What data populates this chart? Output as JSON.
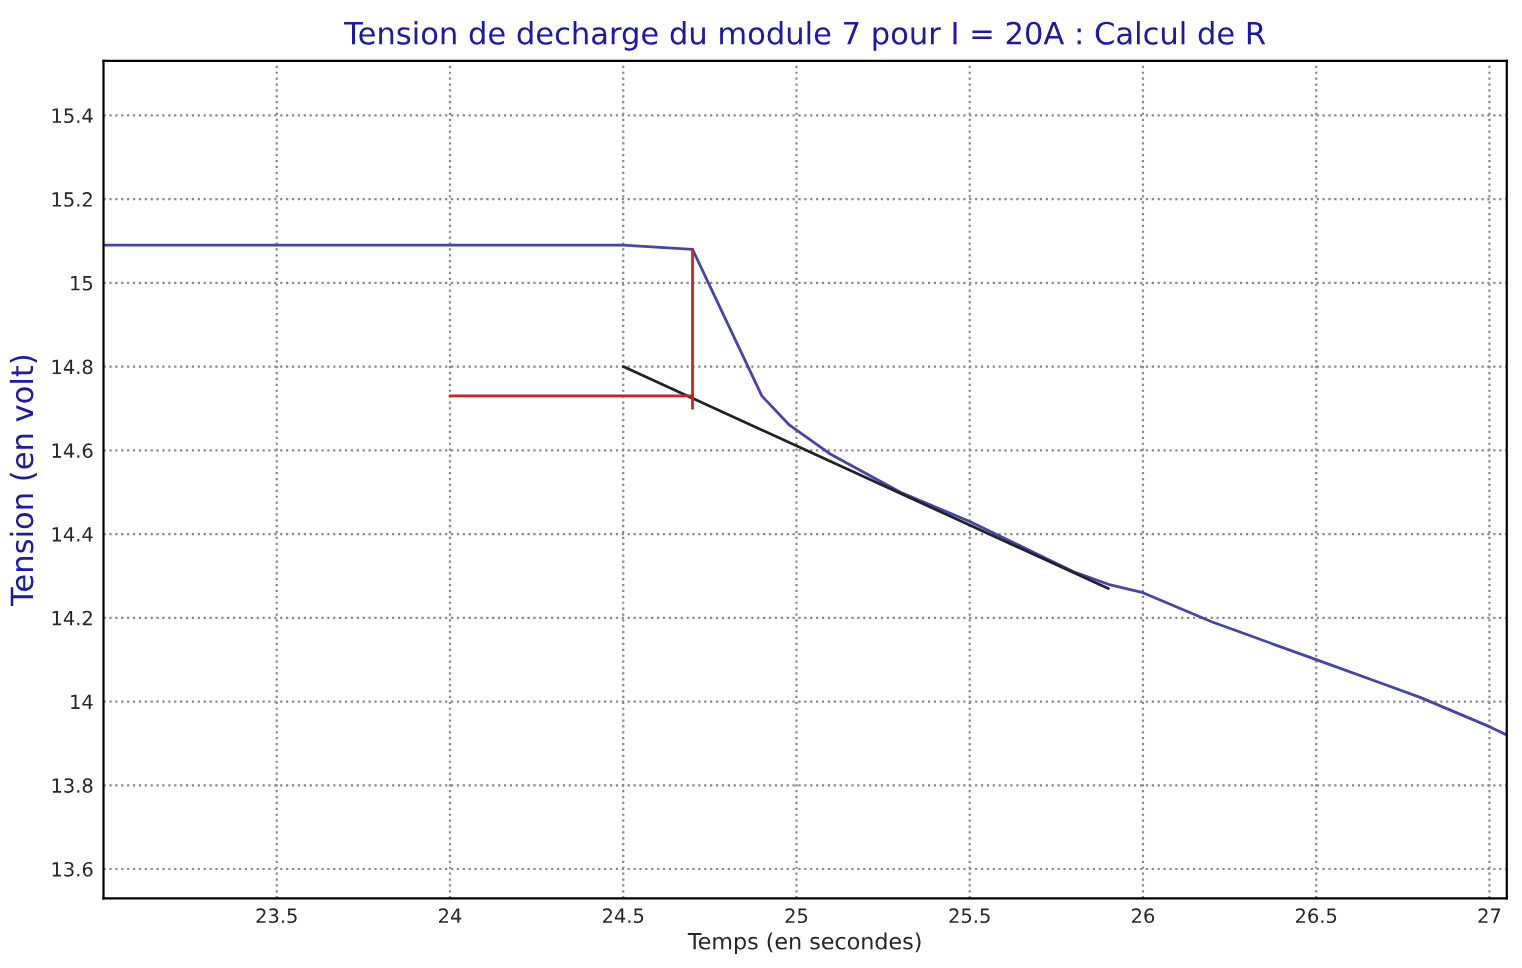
{
  "chart_data": {
    "type": "line",
    "title": "Tension de decharge du module 7 pour I = 20A : Calcul de R",
    "xlabel": "Temps (en secondes)",
    "ylabel": "Tension (en volt)",
    "xlim": [
      23.0,
      27.05
    ],
    "ylim": [
      13.53,
      15.53
    ],
    "xticks": [
      23.5,
      24,
      24.5,
      25,
      25.5,
      26,
      26.5,
      27
    ],
    "yticks": [
      13.6,
      13.8,
      14,
      14.2,
      14.4,
      14.6,
      14.8,
      15,
      15.2,
      15.4
    ],
    "grid": true,
    "line_style": "solid",
    "series": [
      {
        "color": "#4444aa",
        "x": [
          23.0,
          23.5,
          24.0,
          24.5,
          24.7,
          24.9,
          24.98,
          25.1,
          25.3,
          25.5,
          25.7,
          25.8,
          25.9,
          26.0,
          26.2,
          26.3,
          26.5,
          26.7,
          26.8,
          27.0,
          27.05
        ],
        "values": [
          15.09,
          15.09,
          15.09,
          15.09,
          15.08,
          14.73,
          14.66,
          14.59,
          14.5,
          14.43,
          14.35,
          14.31,
          14.28,
          14.26,
          14.19,
          14.16,
          14.1,
          14.04,
          14.01,
          13.94,
          13.92
        ]
      },
      {
        "color": "#222222",
        "x": [
          24.5,
          25.9
        ],
        "values": [
          14.8,
          14.27
        ]
      },
      {
        "color": "#cc2222",
        "x": [
          24.0,
          24.7
        ],
        "values": [
          14.73,
          14.73
        ]
      },
      {
        "color": "#cc2222",
        "x": [
          24.7,
          24.7
        ],
        "values": [
          15.08,
          14.7
        ]
      }
    ]
  }
}
